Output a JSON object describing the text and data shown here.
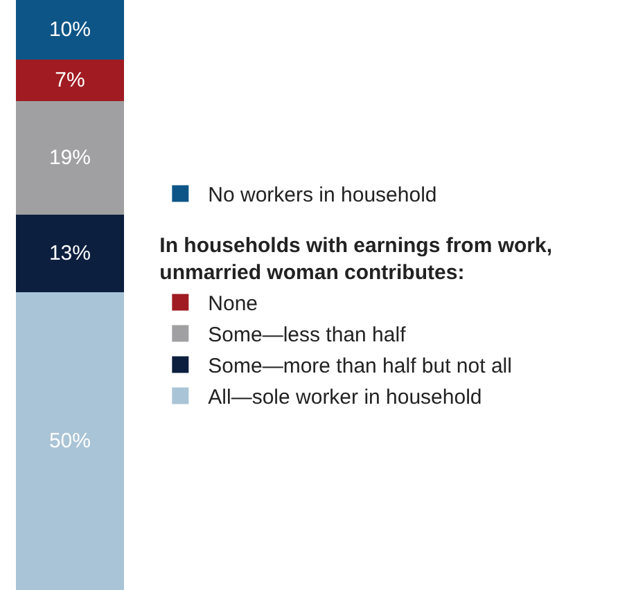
{
  "chart_data": {
    "type": "bar",
    "stacked": true,
    "categories": [
      null
    ],
    "legend": "right",
    "annotations": [
      "In households with earnings from work,\nunmarried woman contributes:"
    ],
    "series": [
      {
        "name": "All—sole worker in household",
        "color": "#a9c4d6",
        "values": [
          50
        ],
        "value_labels": [
          "50%"
        ]
      },
      {
        "name": "Some—more than half but not all",
        "color": "#0d1f3f",
        "values": [
          13
        ],
        "value_labels": [
          "13%"
        ]
      },
      {
        "name": "Some—less than half",
        "color": "#a0a0a2",
        "values": [
          19
        ],
        "value_labels": [
          "19%"
        ]
      },
      {
        "name": "None",
        "color": "#a01c22",
        "values": [
          7
        ],
        "value_labels": [
          "7%"
        ]
      },
      {
        "name": "No workers in household",
        "color": "#0e5587",
        "values": [
          10
        ],
        "value_labels": [
          "10%"
        ]
      }
    ]
  }
}
